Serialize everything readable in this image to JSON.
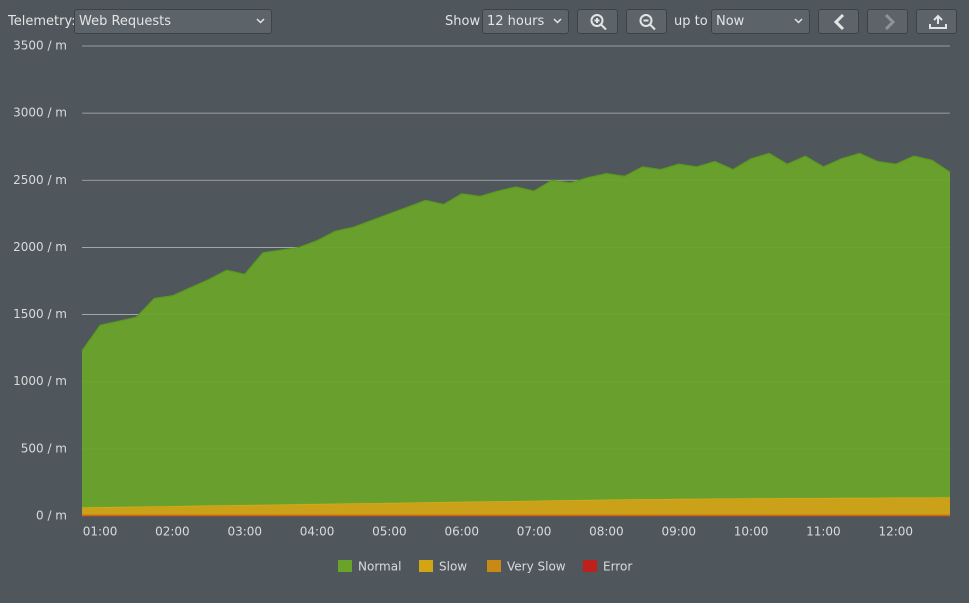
{
  "toolbar": {
    "telemetry_label": "Telemetry:",
    "telemetry_select": "Web Requests",
    "show_label": "Show",
    "range_select": "12 hours",
    "up_to_label": "up to",
    "end_select": "Now"
  },
  "chart_data": {
    "type": "stacked-area",
    "x": [
      0.75,
      1,
      1.25,
      1.5,
      1.75,
      2,
      2.25,
      2.5,
      2.75,
      3,
      3.25,
      3.5,
      3.75,
      4,
      4.25,
      4.5,
      4.75,
      5,
      5.25,
      5.5,
      5.75,
      6,
      6.25,
      6.5,
      6.75,
      7,
      7.25,
      7.5,
      7.75,
      8,
      8.25,
      8.5,
      8.75,
      9,
      9.25,
      9.5,
      9.75,
      10,
      10.25,
      10.5,
      10.75,
      11,
      11.25,
      11.5,
      11.75,
      12,
      12.25,
      12.5,
      12.75
    ],
    "series": [
      {
        "name": "Normal",
        "color": "#6aa329",
        "line": "#5a9a1c",
        "values": [
          1166,
          1354,
          1382,
          1410,
          1548,
          1566,
          1624,
          1682,
          1750,
          1718,
          1876,
          1894,
          1912,
          1960,
          2028,
          2056,
          2104,
          2152,
          2200,
          2248,
          2216,
          2294,
          2272,
          2310,
          2338,
          2306,
          2384,
          2362,
          2400,
          2428,
          2406,
          2474,
          2454,
          2492,
          2472,
          2510,
          2450,
          2528,
          2568,
          2486,
          2546,
          2466,
          2524,
          2564,
          2504,
          2482,
          2542,
          2512,
          2420
        ]
      },
      {
        "name": "Slow",
        "color": "#d1a514",
        "line": "#d8ae18",
        "values": [
          50,
          52,
          54,
          56,
          58,
          60,
          62,
          64,
          66,
          68,
          70,
          72,
          74,
          76,
          78,
          80,
          82,
          84,
          86,
          88,
          90,
          92,
          94,
          96,
          98,
          100,
          102,
          104,
          106,
          108,
          110,
          112,
          112,
          114,
          114,
          116,
          116,
          118,
          118,
          120,
          120,
          120,
          122,
          122,
          122,
          124,
          124,
          124,
          126
        ]
      },
      {
        "name": "Very Slow",
        "color": "#c98a14",
        "line": "#c98a14",
        "values": [
          12,
          12,
          12,
          12,
          12,
          12,
          12,
          12,
          12,
          12,
          12,
          12,
          12,
          12,
          12,
          12,
          12,
          12,
          12,
          12,
          12,
          12,
          12,
          12,
          12,
          12,
          12,
          12,
          12,
          12,
          12,
          12,
          12,
          12,
          12,
          12,
          12,
          12,
          12,
          12,
          12,
          12,
          12,
          12,
          12,
          12,
          12,
          12,
          12
        ]
      },
      {
        "name": "Error",
        "color": "#c0201c",
        "line": "#c0201c",
        "values": [
          2,
          2,
          2,
          2,
          2,
          2,
          2,
          2,
          2,
          2,
          2,
          2,
          2,
          2,
          2,
          2,
          2,
          2,
          2,
          2,
          2,
          2,
          2,
          2,
          2,
          2,
          2,
          2,
          2,
          2,
          2,
          2,
          2,
          2,
          2,
          2,
          2,
          2,
          2,
          2,
          2,
          2,
          2,
          2,
          2,
          2,
          2,
          2,
          2
        ]
      }
    ],
    "xlim": [
      0.75,
      12.75
    ],
    "xticks": [
      {
        "value": 1,
        "label": "01:00"
      },
      {
        "value": 2,
        "label": "02:00"
      },
      {
        "value": 3,
        "label": "03:00"
      },
      {
        "value": 4,
        "label": "04:00"
      },
      {
        "value": 5,
        "label": "05:00"
      },
      {
        "value": 6,
        "label": "06:00"
      },
      {
        "value": 7,
        "label": "07:00"
      },
      {
        "value": 8,
        "label": "08:00"
      },
      {
        "value": 9,
        "label": "09:00"
      },
      {
        "value": 10,
        "label": "10:00"
      },
      {
        "value": 11,
        "label": "11:00"
      },
      {
        "value": 12,
        "label": "12:00"
      }
    ],
    "ylim": [
      0,
      3500
    ],
    "yticks": [
      {
        "value": 0,
        "label": "0 / m"
      },
      {
        "value": 500,
        "label": "500 / m"
      },
      {
        "value": 1000,
        "label": "1000 / m"
      },
      {
        "value": 1500,
        "label": "1500 / m"
      },
      {
        "value": 2000,
        "label": "2000 / m"
      },
      {
        "value": 2500,
        "label": "2500 / m"
      },
      {
        "value": 3000,
        "label": "3000 / m"
      },
      {
        "value": 3500,
        "label": "3500 / m"
      }
    ],
    "grid": true
  }
}
